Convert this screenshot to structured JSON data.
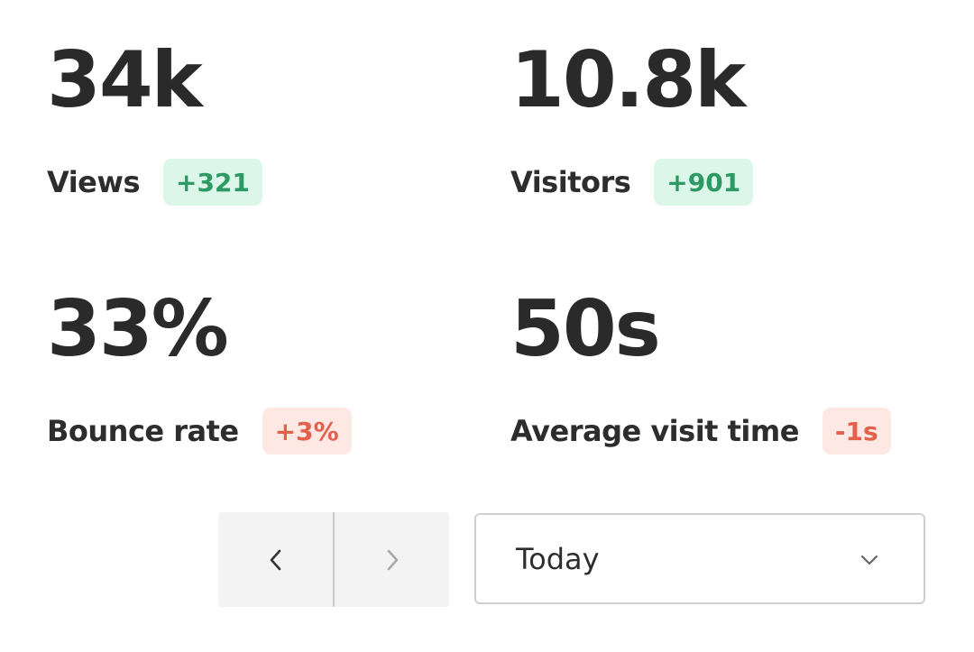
{
  "metrics": {
    "views": {
      "value": "34k",
      "label": "Views",
      "delta": "+321",
      "trend": "up"
    },
    "visitors": {
      "value": "10.8k",
      "label": "Visitors",
      "delta": "+901",
      "trend": "up"
    },
    "bounce_rate": {
      "value": "33%",
      "label": "Bounce rate",
      "delta": "+3%",
      "trend": "down"
    },
    "avg_visit_time": {
      "value": "50s",
      "label": "Average visit time",
      "delta": "-1s",
      "trend": "down"
    }
  },
  "pager": {
    "prev_icon": "chevron-left-icon",
    "next_icon": "chevron-right-icon",
    "next_enabled": false
  },
  "period_select": {
    "selected": "Today",
    "icon": "chevron-down-icon"
  },
  "colors": {
    "positive_bg": "#dcf7ea",
    "positive_text": "#2c9a62",
    "negative_bg": "#fde8e4",
    "negative_text": "#e2604c",
    "value_text": "#2a2a2a"
  }
}
